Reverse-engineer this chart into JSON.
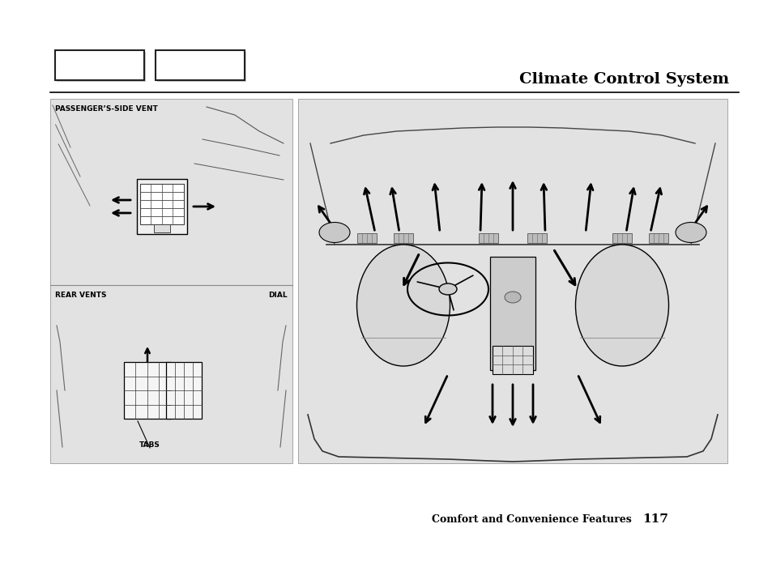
{
  "page_bg": "#ffffff",
  "panel_bg": "#e2e2e2",
  "title": "Climate Control System",
  "title_fontsize": 14,
  "title_weight": "bold",
  "title_family": "serif",
  "footer_text": "Comfort and Convenience Features",
  "footer_page": "117",
  "label_passenger": "PASSENGER’S-SIDE VENT",
  "label_rear_vents": "REAR VENTS",
  "label_dial": "DIAL",
  "label_tabs": "TABS",
  "label_fontsize": 6.5,
  "label_weight": "bold",
  "label_family": "sans-serif"
}
